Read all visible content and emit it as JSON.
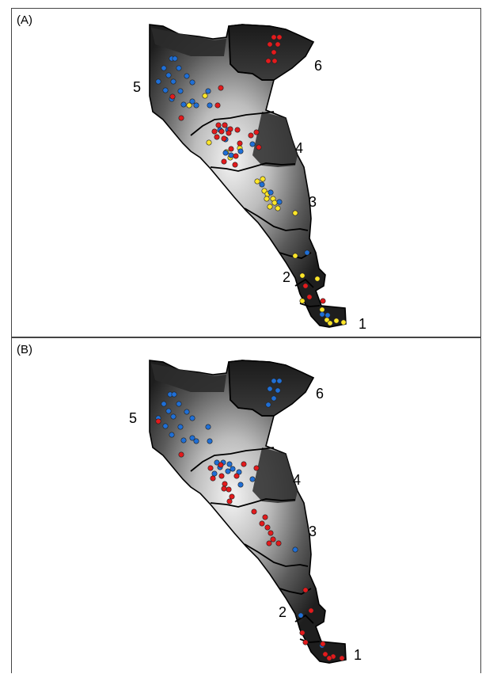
{
  "panels": [
    {
      "id": "A",
      "label": "(A)",
      "region_labels": [
        "1",
        "2",
        "3",
        "4",
        "5",
        "6"
      ],
      "colors": {
        "red": "#e31a1c",
        "blue": "#1f6fd6",
        "yellow": "#ffe629"
      },
      "points": {
        "red": [
          [
            345,
            46
          ],
          [
            352,
            46
          ],
          [
            340,
            55
          ],
          [
            350,
            55
          ],
          [
            345,
            65
          ],
          [
            338,
            76
          ],
          [
            346,
            76
          ],
          [
            278,
            110
          ],
          [
            217,
            121
          ],
          [
            274,
            132
          ],
          [
            228,
            148
          ],
          [
            275,
            157
          ],
          [
            283,
            157
          ],
          [
            290,
            162
          ],
          [
            299,
            163
          ],
          [
            270,
            165
          ],
          [
            279,
            165
          ],
          [
            288,
            167
          ],
          [
            273,
            172
          ],
          [
            282,
            174
          ],
          [
            323,
            166
          ],
          [
            316,
            170
          ],
          [
            302,
            180
          ],
          [
            326,
            185
          ],
          [
            291,
            187
          ],
          [
            297,
            196
          ],
          [
            282,
            203
          ],
          [
            296,
            207
          ],
          [
            385,
            360
          ],
          [
            390,
            374
          ],
          [
            407,
            379
          ]
        ],
        "blue": [
          [
            216,
            73
          ],
          [
            220,
            73
          ],
          [
            206,
            85
          ],
          [
            225,
            85
          ],
          [
            212,
            94
          ],
          [
            235,
            95
          ],
          [
            199,
            102
          ],
          [
            218,
            102
          ],
          [
            242,
            103
          ],
          [
            208,
            113
          ],
          [
            227,
            114
          ],
          [
            262,
            114
          ],
          [
            216,
            124
          ],
          [
            242,
            127
          ],
          [
            231,
            131
          ],
          [
            247,
            132
          ],
          [
            264,
            132
          ],
          [
            283,
            157
          ],
          [
            277,
            163
          ],
          [
            287,
            163
          ],
          [
            284,
            175
          ],
          [
            318,
            181
          ],
          [
            303,
            190
          ],
          [
            284,
            192
          ],
          [
            291,
            195
          ],
          [
            330,
            232
          ],
          [
            341,
            242
          ],
          [
            352,
            254
          ],
          [
            387,
            318
          ],
          [
            406,
            396
          ],
          [
            413,
            397
          ]
        ],
        "yellow": [
          [
            258,
            120
          ],
          [
            238,
            132
          ],
          [
            263,
            179
          ],
          [
            285,
            191
          ],
          [
            302,
            186
          ],
          [
            290,
            198
          ],
          [
            324,
            228
          ],
          [
            331,
            225
          ],
          [
            333,
            240
          ],
          [
            337,
            244
          ],
          [
            336,
            250
          ],
          [
            344,
            250
          ],
          [
            346,
            255
          ],
          [
            340,
            260
          ],
          [
            350,
            262
          ],
          [
            372,
            268
          ],
          [
            372,
            322
          ],
          [
            381,
            347
          ],
          [
            400,
            351
          ],
          [
            381,
            379
          ],
          [
            406,
            390
          ],
          [
            412,
            403
          ],
          [
            424,
            404
          ],
          [
            433,
            406
          ],
          [
            416,
            407
          ]
        ]
      }
    },
    {
      "id": "B",
      "label": "(B)",
      "region_labels": [
        "1",
        "2",
        "3",
        "4",
        "5",
        "6"
      ],
      "colors": {
        "red": "#e31a1c",
        "blue": "#1f6fd6",
        "yellow": "#ffe629"
      },
      "points": {
        "red": [
          [
            199,
            531
          ],
          [
            228,
            573
          ],
          [
            265,
            590
          ],
          [
            278,
            586
          ],
          [
            268,
            603
          ],
          [
            279,
            600
          ],
          [
            283,
            610
          ],
          [
            288,
            617
          ],
          [
            292,
            626
          ],
          [
            289,
            632
          ],
          [
            282,
            616
          ],
          [
            298,
            600
          ],
          [
            307,
            585
          ],
          [
            323,
            590
          ],
          [
            320,
            645
          ],
          [
            334,
            652
          ],
          [
            330,
            660
          ],
          [
            337,
            665
          ],
          [
            341,
            672
          ],
          [
            344,
            680
          ],
          [
            339,
            685
          ],
          [
            351,
            685
          ],
          [
            385,
            744
          ],
          [
            392,
            770
          ],
          [
            381,
            798
          ],
          [
            385,
            810
          ],
          [
            407,
            812
          ],
          [
            410,
            825
          ],
          [
            420,
            828
          ],
          [
            431,
            830
          ],
          [
            415,
            830
          ]
        ],
        "blue": [
          [
            345,
            480
          ],
          [
            352,
            480
          ],
          [
            340,
            490
          ],
          [
            350,
            492
          ],
          [
            345,
            502
          ],
          [
            338,
            510
          ],
          [
            214,
            497
          ],
          [
            219,
            497
          ],
          [
            206,
            509
          ],
          [
            225,
            509
          ],
          [
            212,
            518
          ],
          [
            235,
            519
          ],
          [
            199,
            527
          ],
          [
            218,
            525
          ],
          [
            242,
            527
          ],
          [
            208,
            537
          ],
          [
            227,
            538
          ],
          [
            262,
            538
          ],
          [
            216,
            548
          ],
          [
            242,
            552
          ],
          [
            231,
            555
          ],
          [
            247,
            556
          ],
          [
            264,
            556
          ],
          [
            273,
            583
          ],
          [
            281,
            583
          ],
          [
            289,
            585
          ],
          [
            277,
            589
          ],
          [
            293,
            591
          ],
          [
            287,
            594
          ],
          [
            270,
            597
          ],
          [
            301,
            595
          ],
          [
            318,
            604
          ],
          [
            303,
            611
          ],
          [
            372,
            693
          ],
          [
            379,
            776
          ],
          [
            406,
            814
          ]
        ]
      }
    }
  ]
}
